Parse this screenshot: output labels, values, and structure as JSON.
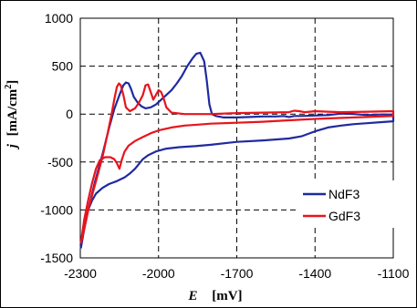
{
  "chart_data": {
    "type": "line",
    "xlabel": {
      "symbol": "E",
      "unit": "[mV]"
    },
    "ylabel": {
      "symbol": "j",
      "unit": "[mA/cm",
      "sup": "2",
      "close": "]"
    },
    "xlim": [
      -2300,
      -1100
    ],
    "ylim": [
      -1500,
      1000
    ],
    "xticks": [
      -2300,
      -2000,
      -1700,
      -1400,
      -1100
    ],
    "yticks": [
      1000,
      500,
      0,
      -500,
      -1000,
      -1500
    ],
    "x_tick_labels": [
      "-2300",
      "-2000",
      "-1700",
      "-1400",
      "-1100"
    ],
    "y_tick_labels": [
      "1000",
      "500",
      "0",
      "-500",
      "-1000",
      "-1500"
    ],
    "grid": true,
    "legend_position": "bottom-right",
    "series": [
      {
        "name": "NdF3",
        "color": "#1f2aa0",
        "points": [
          [
            -2298,
            -1400
          ],
          [
            -2285,
            -1200
          ],
          [
            -2270,
            -1000
          ],
          [
            -2255,
            -900
          ],
          [
            -2240,
            -830
          ],
          [
            -2215,
            -770
          ],
          [
            -2190,
            -730
          ],
          [
            -2160,
            -700
          ],
          [
            -2130,
            -660
          ],
          [
            -2110,
            -620
          ],
          [
            -2090,
            -570
          ],
          [
            -2060,
            -470
          ],
          [
            -2040,
            -430
          ],
          [
            -2010,
            -390
          ],
          [
            -1970,
            -360
          ],
          [
            -1920,
            -345
          ],
          [
            -1860,
            -335
          ],
          [
            -1800,
            -320
          ],
          [
            -1700,
            -290
          ],
          [
            -1600,
            -275
          ],
          [
            -1500,
            -255
          ],
          [
            -1450,
            -230
          ],
          [
            -1400,
            -180
          ],
          [
            -1350,
            -140
          ],
          [
            -1300,
            -120
          ],
          [
            -1250,
            -105
          ],
          [
            -1200,
            -95
          ],
          [
            -1150,
            -85
          ],
          [
            -1100,
            -75
          ],
          [
            -1100,
            -5
          ],
          [
            -1150,
            -5
          ],
          [
            -1200,
            -10
          ],
          [
            -1250,
            0
          ],
          [
            -1300,
            5
          ],
          [
            -1350,
            -10
          ],
          [
            -1400,
            -15
          ],
          [
            -1450,
            -20
          ],
          [
            -1480,
            -20
          ],
          [
            -1500,
            -30
          ],
          [
            -1520,
            -20
          ],
          [
            -1550,
            -25
          ],
          [
            -1600,
            -25
          ],
          [
            -1650,
            -30
          ],
          [
            -1700,
            -35
          ],
          [
            -1750,
            -35
          ],
          [
            -1780,
            -20
          ],
          [
            -1795,
            0
          ],
          [
            -1805,
            100
          ],
          [
            -1815,
            350
          ],
          [
            -1825,
            550
          ],
          [
            -1840,
            640
          ],
          [
            -1855,
            630
          ],
          [
            -1870,
            580
          ],
          [
            -1890,
            500
          ],
          [
            -1910,
            400
          ],
          [
            -1930,
            320
          ],
          [
            -1950,
            250
          ],
          [
            -1970,
            200
          ],
          [
            -1990,
            150
          ],
          [
            -2010,
            100
          ],
          [
            -2030,
            70
          ],
          [
            -2050,
            60
          ],
          [
            -2065,
            80
          ],
          [
            -2080,
            120
          ],
          [
            -2095,
            180
          ],
          [
            -2105,
            260
          ],
          [
            -2115,
            320
          ],
          [
            -2125,
            330
          ],
          [
            -2135,
            300
          ],
          [
            -2150,
            200
          ],
          [
            -2170,
            50
          ],
          [
            -2190,
            -150
          ],
          [
            -2215,
            -420
          ],
          [
            -2245,
            -720
          ],
          [
            -2270,
            -1000
          ],
          [
            -2290,
            -1250
          ],
          [
            -2298,
            -1400
          ]
        ]
      },
      {
        "name": "GdF3",
        "color": "#e8141c",
        "points": [
          [
            -2298,
            -1350
          ],
          [
            -2285,
            -1100
          ],
          [
            -2270,
            -900
          ],
          [
            -2255,
            -720
          ],
          [
            -2240,
            -570
          ],
          [
            -2225,
            -480
          ],
          [
            -2205,
            -450
          ],
          [
            -2185,
            -450
          ],
          [
            -2170,
            -470
          ],
          [
            -2160,
            -510
          ],
          [
            -2150,
            -570
          ],
          [
            -2140,
            -470
          ],
          [
            -2130,
            -390
          ],
          [
            -2115,
            -330
          ],
          [
            -2090,
            -280
          ],
          [
            -2060,
            -240
          ],
          [
            -2030,
            -200
          ],
          [
            -2000,
            -170
          ],
          [
            -1950,
            -140
          ],
          [
            -1900,
            -120
          ],
          [
            -1850,
            -110
          ],
          [
            -1800,
            -100
          ],
          [
            -1700,
            -90
          ],
          [
            -1600,
            -80
          ],
          [
            -1500,
            -65
          ],
          [
            -1400,
            -50
          ],
          [
            -1300,
            -40
          ],
          [
            -1200,
            -30
          ],
          [
            -1100,
            -20
          ],
          [
            -1100,
            30
          ],
          [
            -1200,
            25
          ],
          [
            -1300,
            20
          ],
          [
            -1350,
            25
          ],
          [
            -1400,
            30
          ],
          [
            -1420,
            25
          ],
          [
            -1440,
            20
          ],
          [
            -1460,
            30
          ],
          [
            -1480,
            35
          ],
          [
            -1500,
            20
          ],
          [
            -1600,
            15
          ],
          [
            -1700,
            10
          ],
          [
            -1800,
            0
          ],
          [
            -1850,
            0
          ],
          [
            -1900,
            0
          ],
          [
            -1950,
            15
          ],
          [
            -1970,
            70
          ],
          [
            -1980,
            160
          ],
          [
            -1990,
            230
          ],
          [
            -2000,
            250
          ],
          [
            -2010,
            200
          ],
          [
            -2020,
            150
          ],
          [
            -2030,
            230
          ],
          [
            -2040,
            310
          ],
          [
            -2050,
            300
          ],
          [
            -2060,
            200
          ],
          [
            -2075,
            120
          ],
          [
            -2090,
            60
          ],
          [
            -2110,
            30
          ],
          [
            -2125,
            70
          ],
          [
            -2135,
            200
          ],
          [
            -2145,
            300
          ],
          [
            -2152,
            320
          ],
          [
            -2160,
            280
          ],
          [
            -2170,
            150
          ],
          [
            -2180,
            0
          ],
          [
            -2195,
            -200
          ],
          [
            -2215,
            -450
          ],
          [
            -2240,
            -700
          ],
          [
            -2265,
            -950
          ],
          [
            -2285,
            -1200
          ],
          [
            -2298,
            -1350
          ]
        ]
      }
    ]
  }
}
